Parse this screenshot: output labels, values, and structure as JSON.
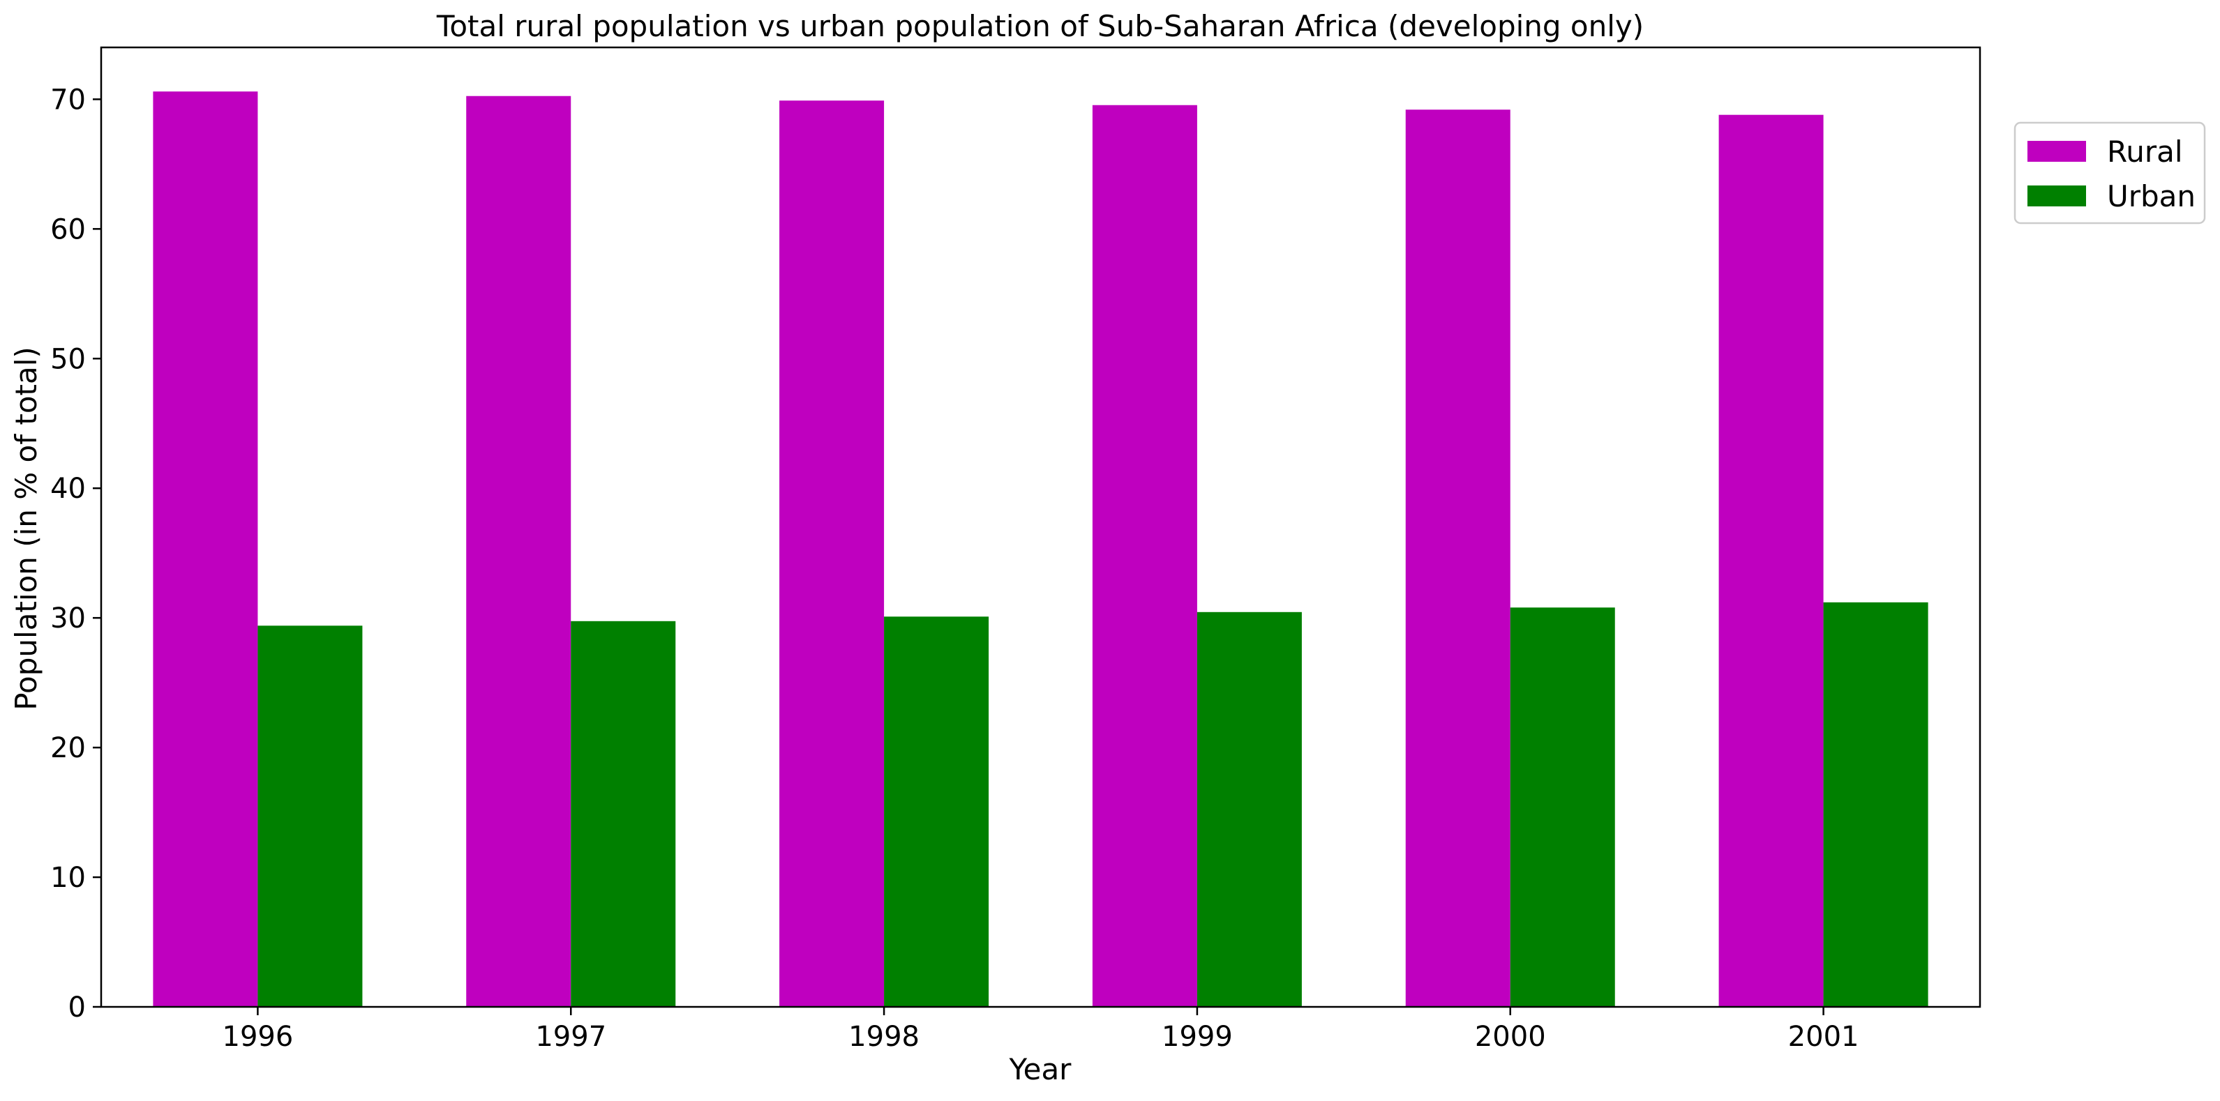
{
  "chart_data": {
    "type": "bar",
    "title": "Total rural population vs urban population of Sub-Saharan Africa (developing only)",
    "xlabel": "Year",
    "ylabel": "Population (in % of total)",
    "categories": [
      "1996",
      "1997",
      "1998",
      "1999",
      "2000",
      "2001"
    ],
    "series": [
      {
        "name": "Rural",
        "color": "#bf00bf",
        "values": [
          70.6,
          70.25,
          69.9,
          69.55,
          69.2,
          68.8
        ]
      },
      {
        "name": "Urban",
        "color": "#008000",
        "values": [
          29.4,
          29.75,
          30.1,
          30.45,
          30.8,
          31.2
        ]
      }
    ],
    "ylim": [
      0,
      74
    ],
    "yticks": [
      0,
      10,
      20,
      30,
      40,
      50,
      60,
      70
    ],
    "grid": false,
    "legend_position": "upper-right-outside"
  }
}
